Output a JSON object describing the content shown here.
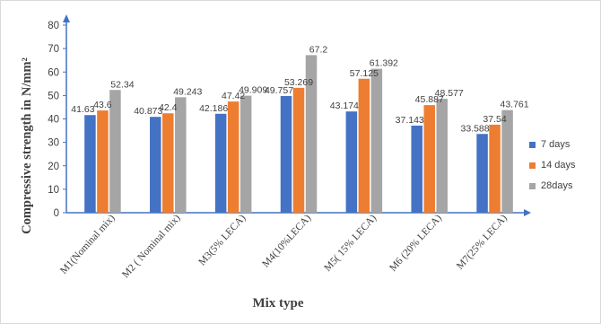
{
  "chart_data": {
    "type": "bar",
    "title": "",
    "xlabel": "Mix type",
    "ylabel": "Compressive strength in N/mm²",
    "ylim": [
      0,
      80
    ],
    "yticks": [
      "0",
      "10",
      "20",
      "30",
      "40",
      "50",
      "60",
      "70",
      "80"
    ],
    "categories": [
      "M1(Nominal mix)",
      "M2 ( Nominal mix)",
      "M3(5% LECA)",
      "M4(10%LECA)",
      "M5( 15% LECA)",
      "M6 (20% LECA)",
      "M7(25% LECA)"
    ],
    "series": [
      {
        "name": "7 days",
        "color": "#4472c4",
        "values": [
          41.63,
          40.873,
          42.186,
          49.757,
          43.174,
          37.143,
          33.588
        ],
        "labels": [
          "41.63",
          "40.873",
          "42.186",
          "49.757",
          "43.174",
          "37.143",
          "33.588"
        ]
      },
      {
        "name": "14 days",
        "color": "#ed7d31",
        "values": [
          43.6,
          42.4,
          47.42,
          53.269,
          57.125,
          45.887,
          37.54
        ],
        "labels": [
          "43.6",
          "42.4",
          "47.42",
          "53.269",
          "57.125",
          "45.887",
          "37.54"
        ]
      },
      {
        "name": "28days",
        "color": "#a5a5a5",
        "values": [
          52.34,
          49.243,
          49.909,
          67.2,
          61.392,
          48.577,
          43.761
        ],
        "labels": [
          "52.34",
          "49.243",
          "49.909",
          "67.2",
          "61.392",
          "48.577",
          "43.761"
        ]
      }
    ],
    "legend_position": "right",
    "grid": false
  }
}
